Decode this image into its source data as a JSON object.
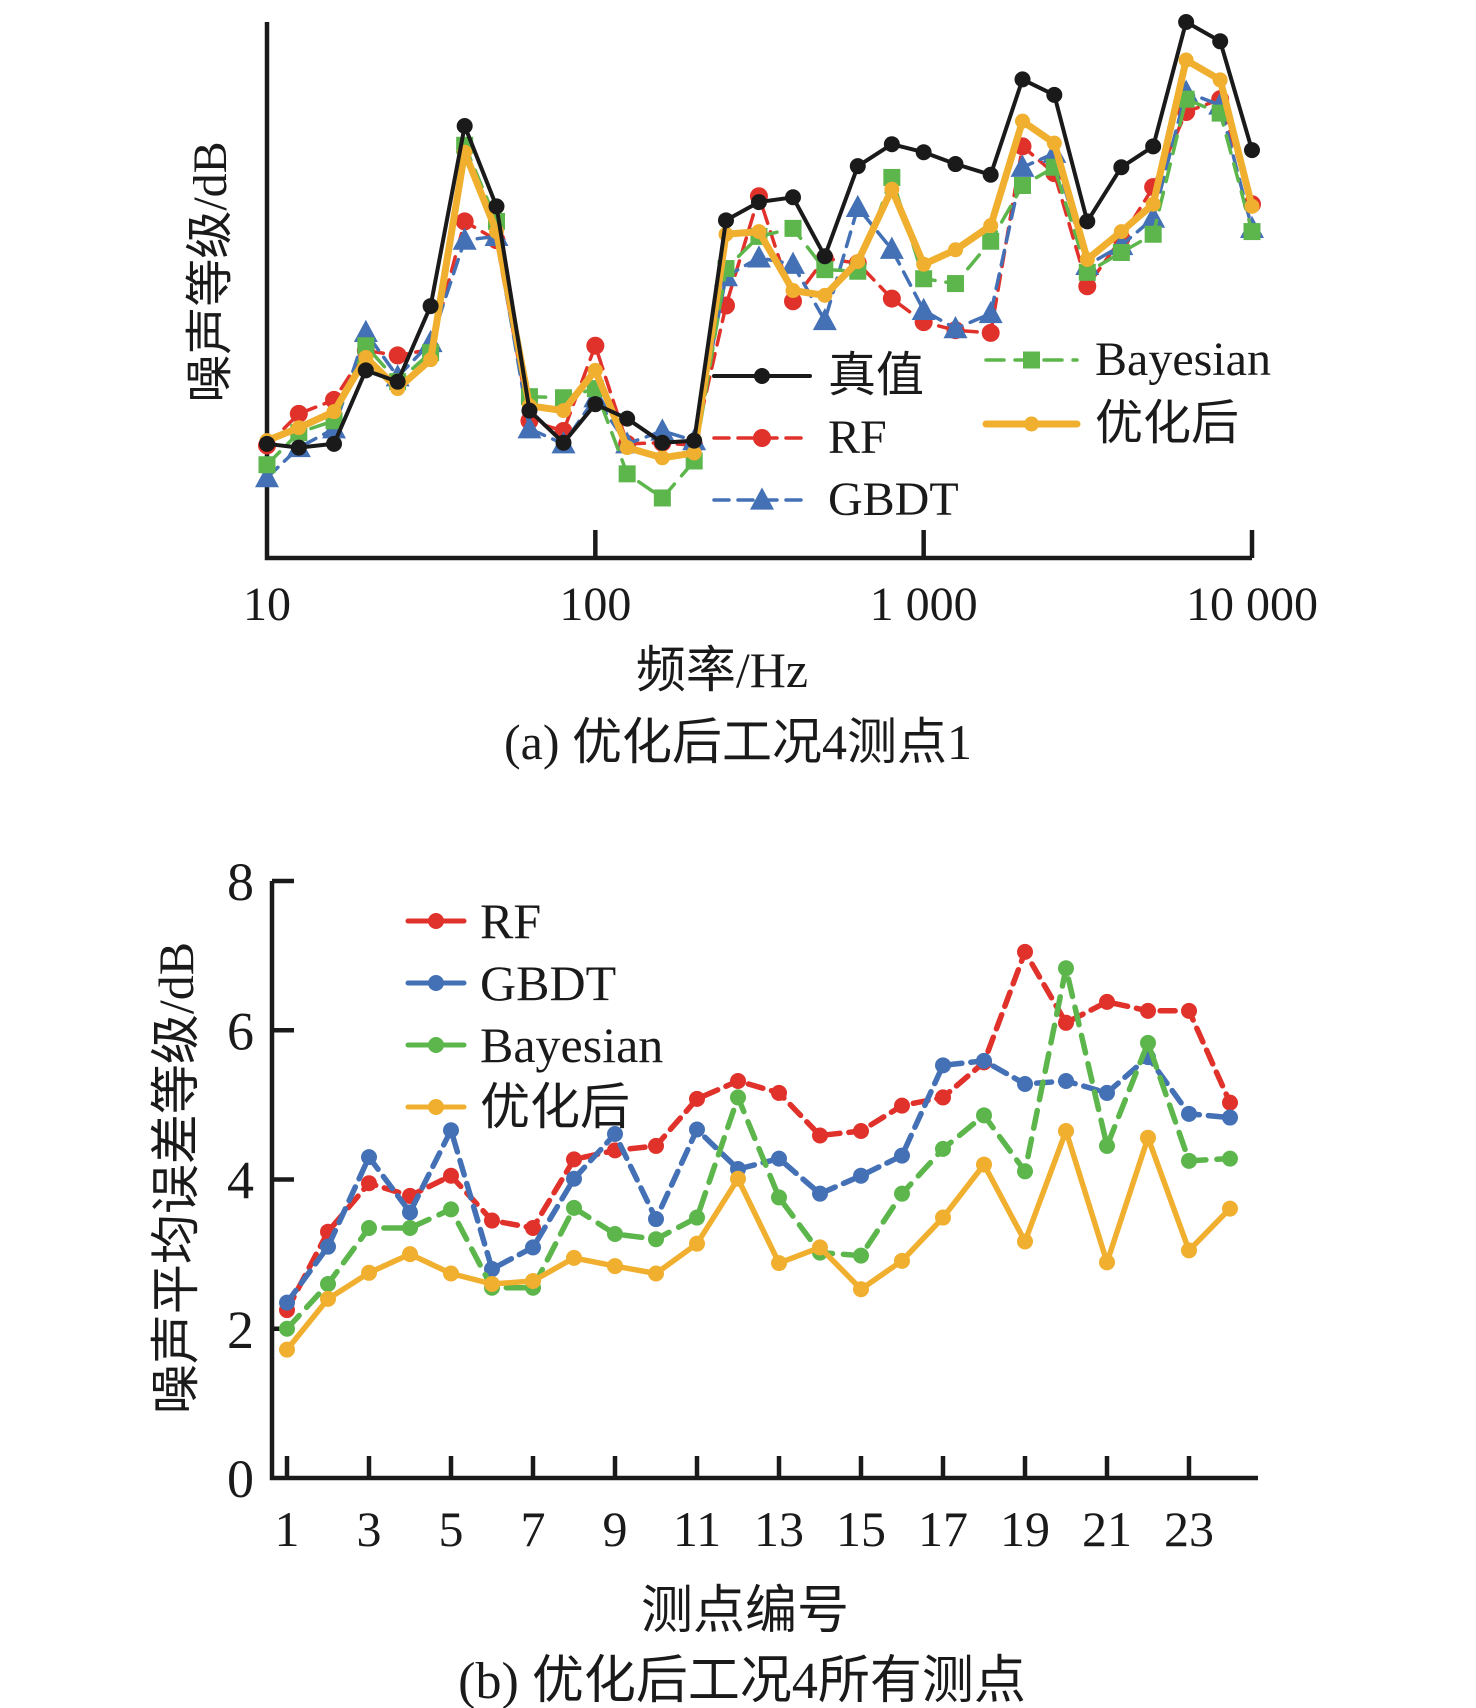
{
  "page": {
    "background": "#ffffff"
  },
  "colors": {
    "truth": "#1a1a1a",
    "rf": "#e0312a",
    "gbdt": "#4471b5",
    "bayesian": "#5cb64c",
    "optimized": "#f0af2f"
  },
  "panel_a": {
    "ylabel": "噪声等级/dB",
    "xlabel": "频率/Hz",
    "caption": "(a) 优化后工况4测点1",
    "x_tick_labels": [
      "10",
      "100",
      "1 000",
      "10 000"
    ]
  },
  "panel_b": {
    "ylabel": "噪声平均误差等级/dB",
    "xlabel": "测点编号",
    "caption": "(b) 优化后工况4所有测点",
    "y_tick_labels": [
      "0",
      "2",
      "4",
      "6",
      "8"
    ],
    "x_tick_labels": [
      "1",
      "3",
      "5",
      "7",
      "9",
      "11",
      "13",
      "15",
      "17",
      "19",
      "21",
      "23"
    ]
  },
  "chart_data": [
    {
      "id": "panel-a",
      "type": "line",
      "title": "",
      "xlabel": "频率/Hz",
      "ylabel": "噪声等级/dB",
      "xscale": "log",
      "x_ticks": [
        10,
        100,
        1000,
        10000
      ],
      "xlim": [
        10,
        10000
      ],
      "ylim": [
        0,
        100
      ],
      "ylim_note": "y axis has no numeric labels; values are relative levels (0-100 of plot height)",
      "grid": false,
      "legend_position": "inside lower-right, two columns",
      "x": [
        10,
        12.5,
        16,
        20,
        25,
        31.5,
        40,
        50,
        63,
        80,
        100,
        125,
        160,
        200,
        250,
        315,
        400,
        500,
        630,
        800,
        1000,
        1250,
        1600,
        2000,
        2500,
        3150,
        4000,
        5000,
        6300,
        8000,
        10000
      ],
      "series": [
        {
          "name": "真值",
          "color": "#1a1a1a",
          "line": "solid",
          "marker": "circle",
          "values": [
            21.3,
            20.6,
            21.3,
            35.0,
            32.9,
            47.0,
            80.6,
            65.6,
            27.5,
            21.5,
            28.7,
            26.0,
            21.5,
            21.9,
            63.0,
            66.4,
            67.3,
            56.3,
            73.1,
            77.2,
            75.7,
            73.5,
            71.5,
            89.3,
            86.4,
            62.8,
            72.9,
            76.8,
            100.0,
            96.4,
            76.1
          ]
        },
        {
          "name": "RF",
          "color": "#e0312a",
          "line": "dashed",
          "marker": "circle",
          "values": [
            21.0,
            26.9,
            29.5,
            38.7,
            37.8,
            38.9,
            62.8,
            59.3,
            25.6,
            23.7,
            39.6,
            21.3,
            21.5,
            21.0,
            47.1,
            67.5,
            47.9,
            55.9,
            55.0,
            48.4,
            44.0,
            42.5,
            42.0,
            76.8,
            71.8,
            50.7,
            59.6,
            69.2,
            83.2,
            85.6,
            66.0
          ]
        },
        {
          "name": "GBDT",
          "color": "#4471b5",
          "line": "dashed",
          "marker": "triangle",
          "values": [
            15.0,
            20.6,
            24.1,
            42.1,
            33.8,
            40.2,
            59.3,
            60.0,
            24.1,
            21.3,
            29.9,
            21.3,
            23.7,
            21.9,
            52.5,
            56.0,
            54.8,
            44.3,
            65.4,
            57.6,
            46.2,
            42.8,
            45.6,
            72.9,
            75.5,
            54.6,
            58.3,
            63.4,
            86.9,
            84.5,
            61.5
          ]
        },
        {
          "name": "Bayesian",
          "color": "#5cb64c",
          "line": "dashed",
          "marker": "square",
          "values": [
            17.4,
            23.4,
            25.6,
            39.6,
            32.9,
            38.3,
            77.0,
            62.8,
            30.1,
            29.9,
            31.6,
            15.7,
            11.2,
            18.1,
            54.0,
            60.0,
            61.5,
            53.8,
            53.5,
            71.0,
            52.1,
            51.2,
            59.1,
            69.5,
            72.9,
            53.3,
            57.0,
            60.4,
            85.6,
            83.0,
            60.9
          ]
        },
        {
          "name": "优化后",
          "color": "#f0af2f",
          "line": "solid",
          "marker": "circle",
          "values": [
            21.9,
            24.3,
            27.3,
            37.4,
            31.6,
            37.0,
            75.7,
            60.9,
            28.4,
            27.5,
            35.0,
            20.6,
            18.7,
            19.6,
            60.4,
            60.9,
            49.9,
            49.0,
            55.3,
            68.8,
            54.8,
            57.5,
            62.0,
            81.5,
            77.4,
            55.7,
            60.9,
            66.0,
            92.9,
            89.2,
            65.6
          ]
        }
      ]
    },
    {
      "id": "panel-b",
      "type": "line",
      "title": "",
      "xlabel": "测点编号",
      "ylabel": "噪声平均误差等级/dB",
      "xscale": "linear",
      "x_ticks": [
        1,
        3,
        5,
        7,
        9,
        11,
        13,
        15,
        17,
        19,
        21,
        23
      ],
      "xlim": [
        1,
        24
      ],
      "ylim": [
        0,
        8
      ],
      "grid": false,
      "legend_position": "inside upper-left",
      "x": [
        1,
        2,
        3,
        4,
        5,
        6,
        7,
        8,
        9,
        10,
        11,
        12,
        13,
        14,
        15,
        16,
        17,
        18,
        19,
        20,
        21,
        22,
        23,
        24
      ],
      "series": [
        {
          "name": "RF",
          "color": "#e0312a",
          "line": "solid",
          "marker": "circle",
          "values": [
            2.25,
            3.3,
            3.95,
            3.78,
            4.05,
            3.45,
            3.35,
            4.27,
            4.39,
            4.45,
            5.08,
            5.32,
            5.16,
            4.59,
            4.65,
            4.99,
            5.1,
            5.57,
            7.05,
            6.1,
            6.38,
            6.26,
            6.26,
            5.03
          ]
        },
        {
          "name": "GBDT",
          "color": "#4471b5",
          "line": "solid",
          "marker": "circle",
          "values": [
            2.35,
            3.1,
            4.3,
            3.56,
            4.66,
            2.8,
            3.09,
            4.01,
            4.61,
            3.47,
            4.67,
            4.14,
            4.28,
            3.81,
            4.05,
            4.32,
            5.53,
            5.59,
            5.28,
            5.32,
            5.16,
            5.64,
            4.88,
            4.83
          ]
        },
        {
          "name": "Bayesian",
          "color": "#5cb64c",
          "line": "solid",
          "marker": "circle",
          "values": [
            2.0,
            2.6,
            3.35,
            3.35,
            3.6,
            2.55,
            2.55,
            3.62,
            3.27,
            3.2,
            3.49,
            5.1,
            3.76,
            3.02,
            2.98,
            3.81,
            4.41,
            4.86,
            4.11,
            6.83,
            4.45,
            5.83,
            4.25,
            4.28
          ]
        },
        {
          "name": "优化后",
          "color": "#f0af2f",
          "line": "solid",
          "marker": "circle",
          "values": [
            1.72,
            2.4,
            2.75,
            3.0,
            2.74,
            2.6,
            2.64,
            2.95,
            2.84,
            2.74,
            3.14,
            4.01,
            2.88,
            3.09,
            2.53,
            2.91,
            3.49,
            4.2,
            3.17,
            4.65,
            2.89,
            4.56,
            3.05,
            3.61
          ]
        }
      ]
    }
  ]
}
